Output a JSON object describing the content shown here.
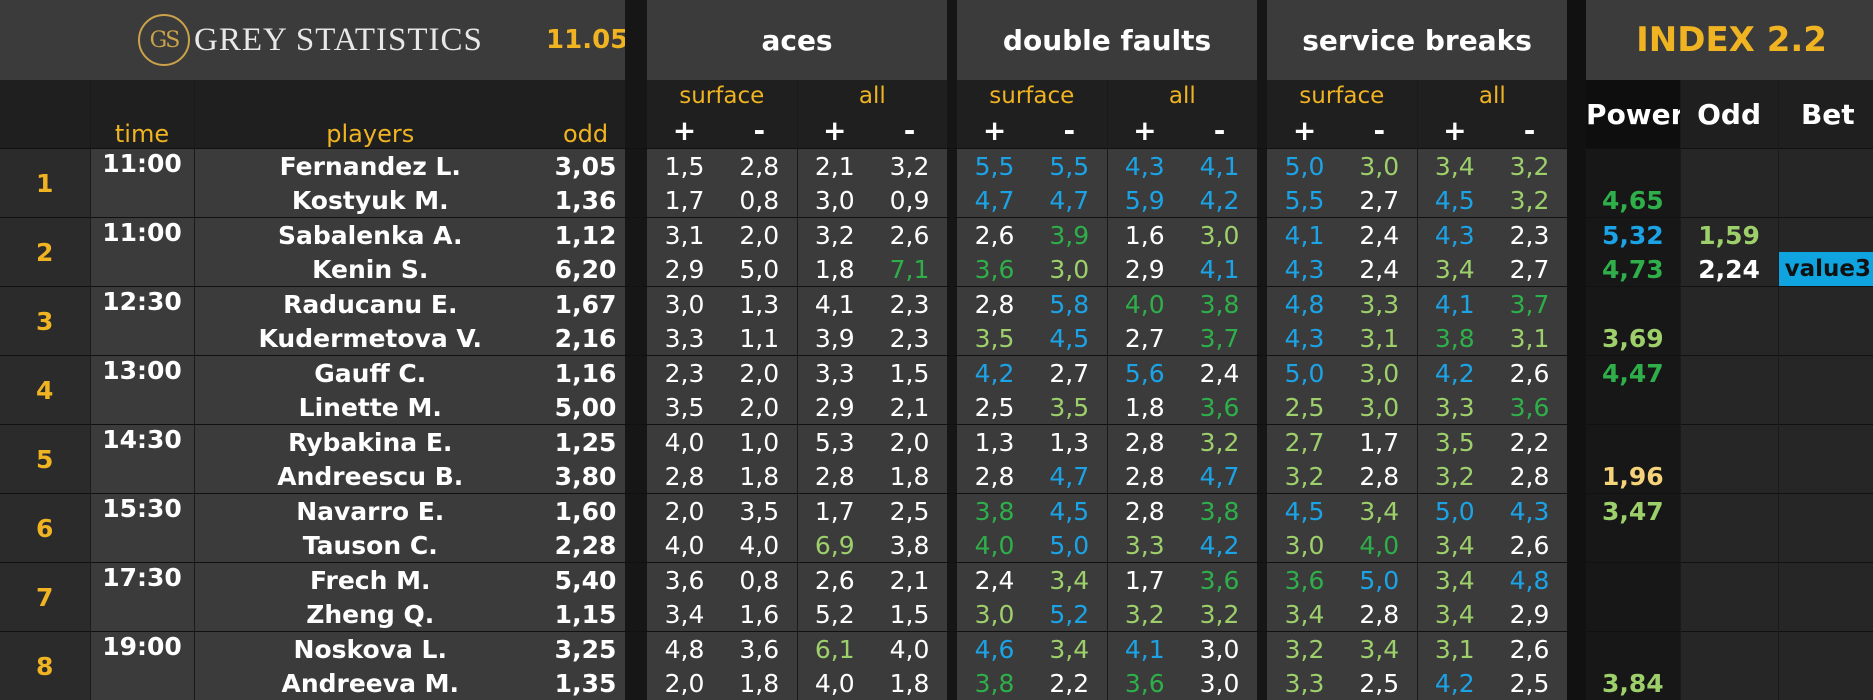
{
  "header": {
    "logo_initials": "GS",
    "logo_text": "GREY STATISTICS",
    "date": "11.05",
    "sections": {
      "aces": "aces",
      "double_faults": "double faults",
      "service_breaks": "service breaks"
    },
    "surface_label": "surface",
    "all_label": "all",
    "plus": "+",
    "minus": "-",
    "col_time": "time",
    "col_players": "players",
    "col_odd": "odd",
    "index_title": "INDEX 2.2",
    "index_power": "Power",
    "index_odd": "Odd",
    "index_bet": "Bet"
  },
  "colors": {
    "gold": "#f0b322",
    "blue": "#1ba3e6",
    "green": "#2eaf4a",
    "light_green": "#9dcf6b",
    "white": "#ffffff",
    "bet_tag": "#0fa3e0"
  },
  "matches": [
    {
      "num": "1",
      "time": "11:00",
      "players": [
        {
          "name": "Fernandez L.",
          "odd": "3,05",
          "stats": [
            [
              "1,5",
              "w"
            ],
            [
              "2,8",
              "w"
            ],
            [
              "2,1",
              "w"
            ],
            [
              "3,2",
              "w"
            ],
            [
              "5,5",
              "b"
            ],
            [
              "5,5",
              "b"
            ],
            [
              "4,3",
              "b"
            ],
            [
              "4,1",
              "b"
            ],
            [
              "5,0",
              "b"
            ],
            [
              "3,0",
              "lg"
            ],
            [
              "3,4",
              "lg"
            ],
            [
              "3,2",
              "lg"
            ]
          ],
          "power": [
            "",
            ""
          ],
          "odd2": [
            "",
            ""
          ],
          "bet": ""
        },
        {
          "name": "Kostyuk M.",
          "odd": "1,36",
          "stats": [
            [
              "1,7",
              "w"
            ],
            [
              "0,8",
              "w"
            ],
            [
              "3,0",
              "w"
            ],
            [
              "0,9",
              "w"
            ],
            [
              "4,7",
              "b"
            ],
            [
              "4,7",
              "b"
            ],
            [
              "5,9",
              "b"
            ],
            [
              "4,2",
              "b"
            ],
            [
              "5,5",
              "b"
            ],
            [
              "2,7",
              "w"
            ],
            [
              "4,5",
              "b"
            ],
            [
              "3,2",
              "lg"
            ]
          ],
          "power": [
            "4,65",
            "g"
          ],
          "odd2": [
            "",
            ""
          ],
          "bet": ""
        }
      ]
    },
    {
      "num": "2",
      "time": "11:00",
      "players": [
        {
          "name": "Sabalenka A.",
          "odd": "1,12",
          "stats": [
            [
              "3,1",
              "w"
            ],
            [
              "2,0",
              "w"
            ],
            [
              "3,2",
              "w"
            ],
            [
              "2,6",
              "w"
            ],
            [
              "2,6",
              "w"
            ],
            [
              "3,9",
              "g"
            ],
            [
              "1,6",
              "w"
            ],
            [
              "3,0",
              "lg"
            ],
            [
              "4,1",
              "b"
            ],
            [
              "2,4",
              "w"
            ],
            [
              "4,3",
              "b"
            ],
            [
              "2,3",
              "w"
            ]
          ],
          "power": [
            "5,32",
            "b"
          ],
          "odd2": [
            "1,59",
            "lg"
          ],
          "bet": ""
        },
        {
          "name": "Kenin S.",
          "odd": "6,20",
          "stats": [
            [
              "2,9",
              "w"
            ],
            [
              "5,0",
              "w"
            ],
            [
              "1,8",
              "w"
            ],
            [
              "7,1",
              "g"
            ],
            [
              "3,6",
              "g"
            ],
            [
              "3,0",
              "lg"
            ],
            [
              "2,9",
              "w"
            ],
            [
              "4,1",
              "b"
            ],
            [
              "4,3",
              "b"
            ],
            [
              "2,4",
              "w"
            ],
            [
              "3,4",
              "lg"
            ],
            [
              "2,7",
              "w"
            ]
          ],
          "power": [
            "4,73",
            "g"
          ],
          "odd2": [
            "2,24",
            "w"
          ],
          "bet": "value3"
        }
      ]
    },
    {
      "num": "3",
      "time": "12:30",
      "players": [
        {
          "name": "Raducanu E.",
          "odd": "1,67",
          "stats": [
            [
              "3,0",
              "w"
            ],
            [
              "1,3",
              "w"
            ],
            [
              "4,1",
              "w"
            ],
            [
              "2,3",
              "w"
            ],
            [
              "2,8",
              "w"
            ],
            [
              "5,8",
              "b"
            ],
            [
              "4,0",
              "g"
            ],
            [
              "3,8",
              "g"
            ],
            [
              "4,8",
              "b"
            ],
            [
              "3,3",
              "lg"
            ],
            [
              "4,1",
              "b"
            ],
            [
              "3,7",
              "g"
            ]
          ],
          "power": [
            "",
            ""
          ],
          "odd2": [
            "",
            ""
          ],
          "bet": ""
        },
        {
          "name": "Kudermetova V.",
          "odd": "2,16",
          "stats": [
            [
              "3,3",
              "w"
            ],
            [
              "1,1",
              "w"
            ],
            [
              "3,9",
              "w"
            ],
            [
              "2,3",
              "w"
            ],
            [
              "3,5",
              "lg"
            ],
            [
              "4,5",
              "b"
            ],
            [
              "2,7",
              "w"
            ],
            [
              "3,7",
              "g"
            ],
            [
              "4,3",
              "b"
            ],
            [
              "3,1",
              "lg"
            ],
            [
              "3,8",
              "g"
            ],
            [
              "3,1",
              "lg"
            ]
          ],
          "power": [
            "3,69",
            "lg"
          ],
          "odd2": [
            "",
            ""
          ],
          "bet": ""
        }
      ]
    },
    {
      "num": "4",
      "time": "13:00",
      "players": [
        {
          "name": "Gauff C.",
          "odd": "1,16",
          "stats": [
            [
              "2,3",
              "w"
            ],
            [
              "2,0",
              "w"
            ],
            [
              "3,3",
              "w"
            ],
            [
              "1,5",
              "w"
            ],
            [
              "4,2",
              "b"
            ],
            [
              "2,7",
              "w"
            ],
            [
              "5,6",
              "b"
            ],
            [
              "2,4",
              "w"
            ],
            [
              "5,0",
              "b"
            ],
            [
              "3,0",
              "lg"
            ],
            [
              "4,2",
              "b"
            ],
            [
              "2,6",
              "w"
            ]
          ],
          "power": [
            "4,47",
            "g"
          ],
          "odd2": [
            "",
            ""
          ],
          "bet": ""
        },
        {
          "name": "Linette M.",
          "odd": "5,00",
          "stats": [
            [
              "3,5",
              "w"
            ],
            [
              "2,0",
              "w"
            ],
            [
              "2,9",
              "w"
            ],
            [
              "2,1",
              "w"
            ],
            [
              "2,5",
              "w"
            ],
            [
              "3,5",
              "lg"
            ],
            [
              "1,8",
              "w"
            ],
            [
              "3,6",
              "g"
            ],
            [
              "2,5",
              "lg"
            ],
            [
              "3,0",
              "lg"
            ],
            [
              "3,3",
              "lg"
            ],
            [
              "3,6",
              "g"
            ]
          ],
          "power": [
            "",
            ""
          ],
          "odd2": [
            "",
            ""
          ],
          "bet": ""
        }
      ]
    },
    {
      "num": "5",
      "time": "14:30",
      "players": [
        {
          "name": "Rybakina E.",
          "odd": "1,25",
          "stats": [
            [
              "4,0",
              "w"
            ],
            [
              "1,0",
              "w"
            ],
            [
              "5,3",
              "w"
            ],
            [
              "2,0",
              "w"
            ],
            [
              "1,3",
              "w"
            ],
            [
              "1,3",
              "w"
            ],
            [
              "2,8",
              "w"
            ],
            [
              "3,2",
              "lg"
            ],
            [
              "2,7",
              "lg"
            ],
            [
              "1,7",
              "w"
            ],
            [
              "3,5",
              "lg"
            ],
            [
              "2,2",
              "w"
            ]
          ],
          "power": [
            "",
            ""
          ],
          "odd2": [
            "",
            ""
          ],
          "bet": ""
        },
        {
          "name": "Andreescu B.",
          "odd": "3,80",
          "stats": [
            [
              "2,8",
              "w"
            ],
            [
              "1,8",
              "w"
            ],
            [
              "2,8",
              "w"
            ],
            [
              "1,8",
              "w"
            ],
            [
              "2,8",
              "w"
            ],
            [
              "4,7",
              "b"
            ],
            [
              "2,8",
              "w"
            ],
            [
              "4,7",
              "b"
            ],
            [
              "3,2",
              "lg"
            ],
            [
              "2,8",
              "w"
            ],
            [
              "3,2",
              "lg"
            ],
            [
              "2,8",
              "w"
            ]
          ],
          "power": [
            "1,96",
            "y"
          ],
          "odd2": [
            "",
            ""
          ],
          "bet": ""
        }
      ]
    },
    {
      "num": "6",
      "time": "15:30",
      "players": [
        {
          "name": "Navarro E.",
          "odd": "1,60",
          "stats": [
            [
              "2,0",
              "w"
            ],
            [
              "3,5",
              "w"
            ],
            [
              "1,7",
              "w"
            ],
            [
              "2,5",
              "w"
            ],
            [
              "3,8",
              "g"
            ],
            [
              "4,5",
              "b"
            ],
            [
              "2,8",
              "w"
            ],
            [
              "3,8",
              "g"
            ],
            [
              "4,5",
              "b"
            ],
            [
              "3,4",
              "lg"
            ],
            [
              "5,0",
              "b"
            ],
            [
              "4,3",
              "b"
            ]
          ],
          "power": [
            "3,47",
            "lg"
          ],
          "odd2": [
            "",
            ""
          ],
          "bet": ""
        },
        {
          "name": "Tauson C.",
          "odd": "2,28",
          "stats": [
            [
              "4,0",
              "w"
            ],
            [
              "4,0",
              "w"
            ],
            [
              "6,9",
              "lg"
            ],
            [
              "3,8",
              "w"
            ],
            [
              "4,0",
              "g"
            ],
            [
              "5,0",
              "b"
            ],
            [
              "3,3",
              "lg"
            ],
            [
              "4,2",
              "b"
            ],
            [
              "3,0",
              "lg"
            ],
            [
              "4,0",
              "g"
            ],
            [
              "3,4",
              "lg"
            ],
            [
              "2,6",
              "w"
            ]
          ],
          "power": [
            "",
            ""
          ],
          "odd2": [
            "",
            ""
          ],
          "bet": ""
        }
      ]
    },
    {
      "num": "7",
      "time": "17:30",
      "players": [
        {
          "name": "Frech M.",
          "odd": "5,40",
          "stats": [
            [
              "3,6",
              "w"
            ],
            [
              "0,8",
              "w"
            ],
            [
              "2,6",
              "w"
            ],
            [
              "2,1",
              "w"
            ],
            [
              "2,4",
              "w"
            ],
            [
              "3,4",
              "lg"
            ],
            [
              "1,7",
              "w"
            ],
            [
              "3,6",
              "g"
            ],
            [
              "3,6",
              "g"
            ],
            [
              "5,0",
              "b"
            ],
            [
              "3,4",
              "lg"
            ],
            [
              "4,8",
              "b"
            ]
          ],
          "power": [
            "",
            ""
          ],
          "odd2": [
            "",
            ""
          ],
          "bet": ""
        },
        {
          "name": "Zheng Q.",
          "odd": "1,15",
          "stats": [
            [
              "3,4",
              "w"
            ],
            [
              "1,6",
              "w"
            ],
            [
              "5,2",
              "w"
            ],
            [
              "1,5",
              "w"
            ],
            [
              "3,0",
              "lg"
            ],
            [
              "5,2",
              "b"
            ],
            [
              "3,2",
              "lg"
            ],
            [
              "3,2",
              "lg"
            ],
            [
              "3,4",
              "lg"
            ],
            [
              "2,8",
              "w"
            ],
            [
              "3,4",
              "lg"
            ],
            [
              "2,9",
              "w"
            ]
          ],
          "power": [
            "",
            ""
          ],
          "odd2": [
            "",
            ""
          ],
          "bet": ""
        }
      ]
    },
    {
      "num": "8",
      "time": "19:00",
      "players": [
        {
          "name": "Noskova L.",
          "odd": "3,25",
          "stats": [
            [
              "4,8",
              "w"
            ],
            [
              "3,6",
              "w"
            ],
            [
              "6,1",
              "lg"
            ],
            [
              "4,0",
              "w"
            ],
            [
              "4,6",
              "b"
            ],
            [
              "3,4",
              "lg"
            ],
            [
              "4,1",
              "b"
            ],
            [
              "3,0",
              "w"
            ],
            [
              "3,2",
              "lg"
            ],
            [
              "3,4",
              "lg"
            ],
            [
              "3,1",
              "lg"
            ],
            [
              "2,6",
              "w"
            ]
          ],
          "power": [
            "",
            ""
          ],
          "odd2": [
            "",
            ""
          ],
          "bet": ""
        },
        {
          "name": "Andreeva M.",
          "odd": "1,35",
          "stats": [
            [
              "2,0",
              "w"
            ],
            [
              "1,8",
              "w"
            ],
            [
              "4,0",
              "w"
            ],
            [
              "1,8",
              "w"
            ],
            [
              "3,8",
              "g"
            ],
            [
              "2,2",
              "w"
            ],
            [
              "3,6",
              "g"
            ],
            [
              "3,0",
              "w"
            ],
            [
              "3,3",
              "lg"
            ],
            [
              "2,5",
              "w"
            ],
            [
              "4,2",
              "b"
            ],
            [
              "2,5",
              "w"
            ]
          ],
          "power": [
            "3,84",
            "lg"
          ],
          "odd2": [
            "",
            ""
          ],
          "bet": ""
        }
      ]
    }
  ]
}
